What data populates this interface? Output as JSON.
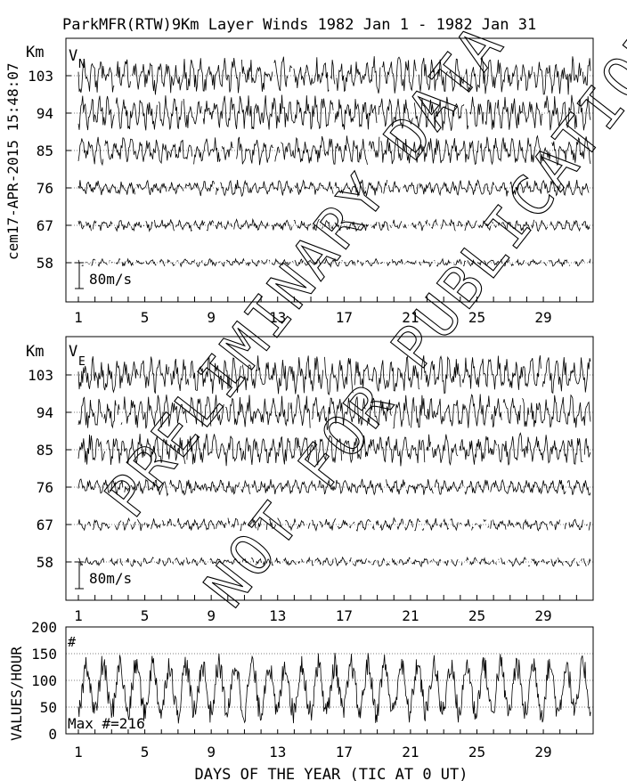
{
  "header": {
    "title": "ParkMFR(RTW)9Km Layer Winds 1982 Jan  1 - 1982 Jan 31",
    "stamp": "cem17-APR-2015 15:48:07"
  },
  "watermark": {
    "lines": [
      "PRELIMINARY DATA",
      "NOT FOR PUBLICATION"
    ]
  },
  "chart_data": [
    {
      "type": "line",
      "panel": "north",
      "component_label": "V",
      "component_sub": "N",
      "y_unit": "Km",
      "heights": [
        103,
        94,
        85,
        76,
        67,
        58
      ],
      "scale_bar_label": "80m/s",
      "scale_bar_ms": 80,
      "x_range": [
        1,
        32
      ],
      "x_ticks": [
        "1",
        "5",
        "9",
        "13",
        "17",
        "21",
        "25",
        "29"
      ],
      "series_amplitude_ms": [
        60,
        55,
        45,
        25,
        18,
        12
      ]
    },
    {
      "type": "line",
      "panel": "east",
      "component_label": "V",
      "component_sub": "E",
      "y_unit": "Km",
      "heights": [
        103,
        94,
        85,
        76,
        67,
        58
      ],
      "scale_bar_label": "80m/s",
      "scale_bar_ms": 80,
      "x_range": [
        1,
        32
      ],
      "x_ticks": [
        "1",
        "5",
        "9",
        "13",
        "17",
        "21",
        "25",
        "29"
      ],
      "series_amplitude_ms": [
        60,
        55,
        50,
        25,
        20,
        14
      ]
    },
    {
      "type": "line",
      "panel": "count",
      "ylabel": "VALUES/HOUR",
      "marker": "#",
      "max_label": "Max #=216",
      "ylim": [
        0,
        200
      ],
      "y_ticks": [
        "0",
        "50",
        "100",
        "150",
        "200"
      ],
      "x_range": [
        1,
        32
      ],
      "x_ticks": [
        "1",
        "5",
        "9",
        "13",
        "17",
        "21",
        "25",
        "29"
      ],
      "xlabel": "DAYS OF THE YEAR (TIC AT 0 UT)",
      "diurnal_peak": 130,
      "diurnal_trough": 40
    }
  ]
}
